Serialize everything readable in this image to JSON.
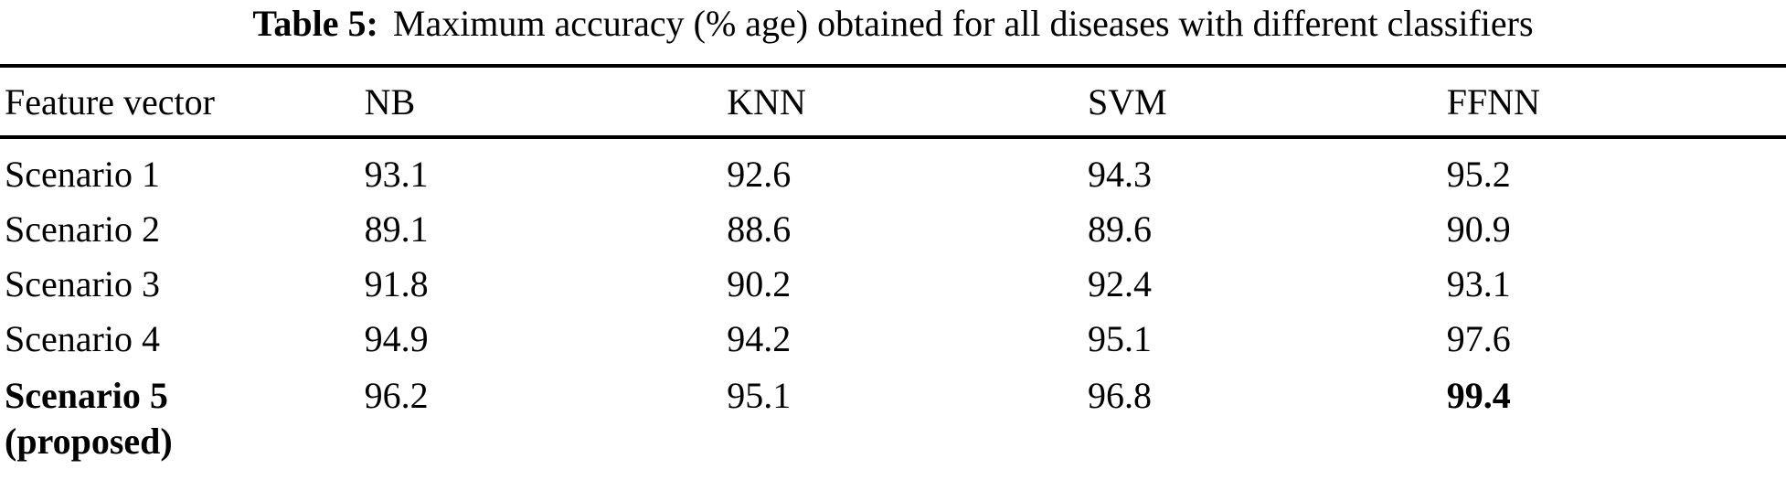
{
  "caption": {
    "label": "Table 5:",
    "text": "Maximum accuracy (% age) obtained for all diseases with different classifiers"
  },
  "colors": {
    "background": "#ffffff",
    "text": "#000000",
    "rule": "#000000"
  },
  "chart_data": {
    "type": "table",
    "title": "Table 5: Maximum accuracy (% age) obtained for all diseases with different classifiers",
    "columns": [
      "Feature vector",
      "NB",
      "KNN",
      "SVM",
      "FFNN"
    ],
    "rows": [
      {
        "feature": "Scenario 1",
        "nb": "93.1",
        "knn": "92.6",
        "svm": "94.3",
        "ffnn": "95.2"
      },
      {
        "feature": "Scenario 2",
        "nb": "89.1",
        "knn": "88.6",
        "svm": "89.6",
        "ffnn": "90.9"
      },
      {
        "feature": "Scenario 3",
        "nb": "91.8",
        "knn": "90.2",
        "svm": "92.4",
        "ffnn": "93.1"
      },
      {
        "feature": "Scenario 4",
        "nb": "94.9",
        "knn": "94.2",
        "svm": "95.1",
        "ffnn": "97.6"
      },
      {
        "feature": "Scenario 5",
        "feature_note": "(proposed)",
        "nb": "96.2",
        "knn": "95.1",
        "svm": "96.8",
        "ffnn": "99.4"
      }
    ]
  }
}
